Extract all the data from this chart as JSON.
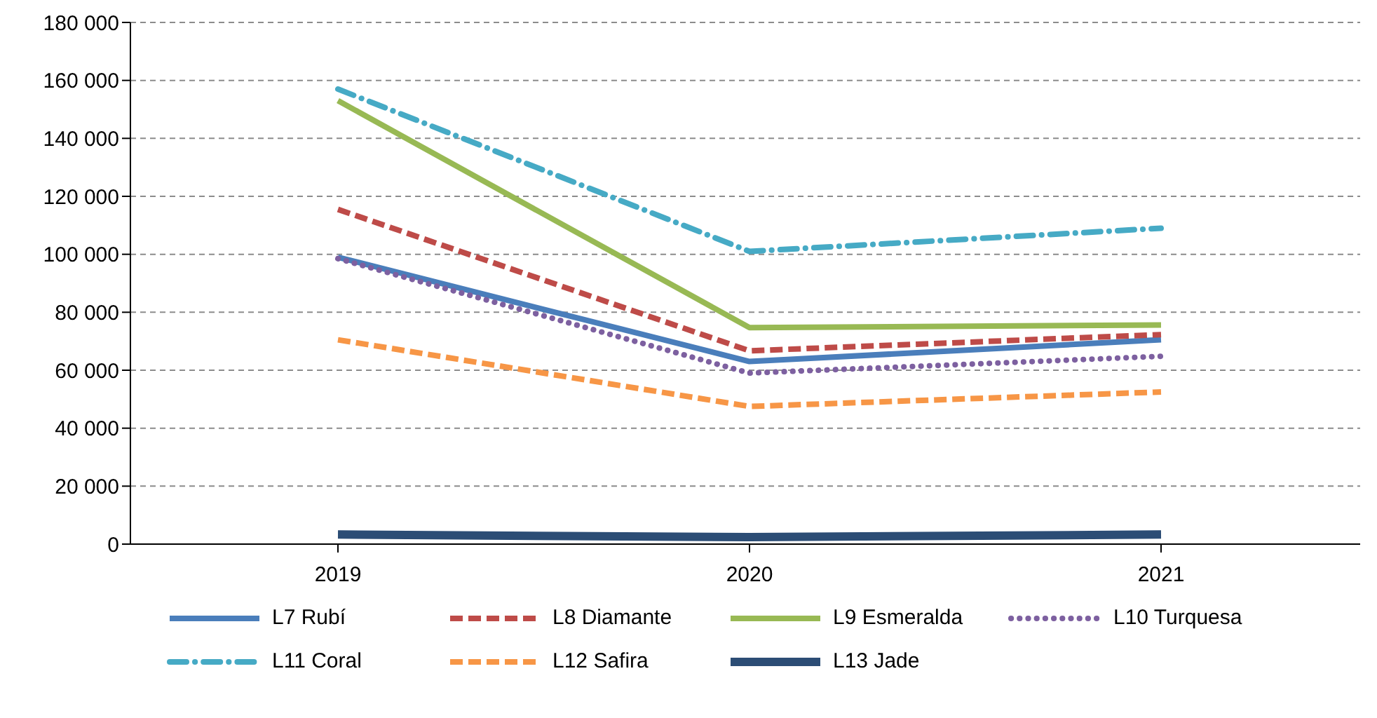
{
  "chart_data": {
    "type": "line",
    "categories": [
      "2019",
      "2020",
      "2021"
    ],
    "series": [
      {
        "name": "L7 Rubí",
        "color": "#4a7ebb",
        "line_style": "solid",
        "values": [
          99000,
          63000,
          70500
        ]
      },
      {
        "name": "L8 Diamante",
        "color": "#be4b48",
        "line_style": "dashed",
        "values": [
          115500,
          66700,
          72300
        ]
      },
      {
        "name": "L9 Esmeralda",
        "color": "#98b954",
        "line_style": "solid",
        "values": [
          153000,
          74700,
          75600
        ]
      },
      {
        "name": "L10 Turquesa",
        "color": "#7d60a0",
        "line_style": "dotted",
        "values": [
          98500,
          59000,
          64800
        ]
      },
      {
        "name": "L11 Coral",
        "color": "#46aac5",
        "line_style": "dashdot",
        "values": [
          157000,
          101000,
          109000
        ]
      },
      {
        "name": "L12 Safira",
        "color": "#f79646",
        "line_style": "dashed",
        "values": [
          70500,
          47500,
          52500
        ]
      },
      {
        "name": "L13 Jade",
        "color": "#2c4d75",
        "line_style": "solid",
        "values": [
          3300,
          2400,
          3300
        ]
      }
    ],
    "ylim": [
      0,
      180000
    ],
    "yticks": [
      {
        "value": 0,
        "label": "0"
      },
      {
        "value": 20000,
        "label": "20 000"
      },
      {
        "value": 40000,
        "label": "40 000"
      },
      {
        "value": 60000,
        "label": "60 000"
      },
      {
        "value": 80000,
        "label": "80 000"
      },
      {
        "value": 100000,
        "label": "100 000"
      },
      {
        "value": 120000,
        "label": "120 000"
      },
      {
        "value": 140000,
        "label": "140 000"
      },
      {
        "value": 160000,
        "label": "160 000"
      },
      {
        "value": 180000,
        "label": "180 000"
      }
    ],
    "grid": "y",
    "legend": "bottom",
    "marker": "none"
  }
}
